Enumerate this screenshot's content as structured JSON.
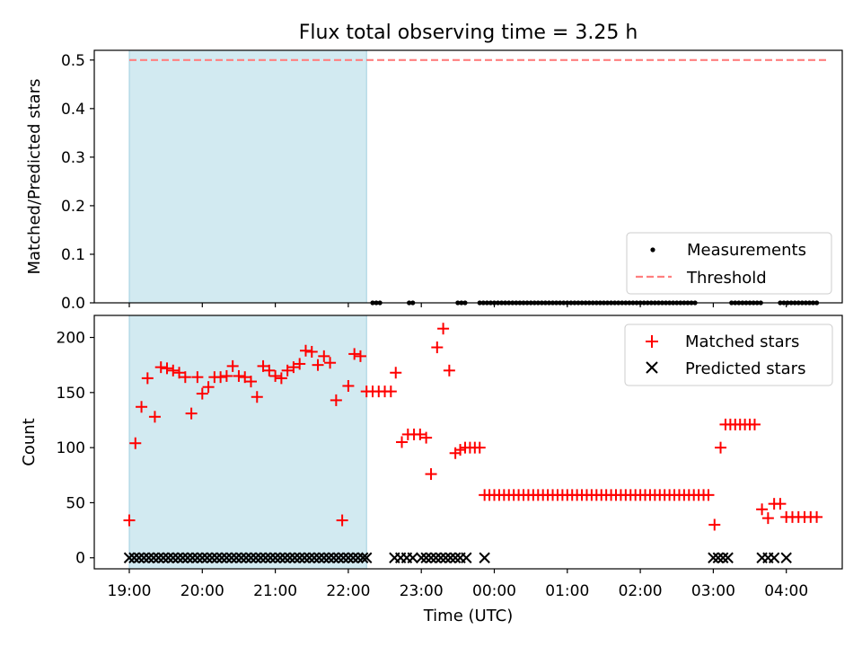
{
  "title": "Flux total observing time = 3.25 h",
  "xlabel": "Time (UTC)",
  "x_ticks": [
    "19:00",
    "20:00",
    "21:00",
    "22:00",
    "23:00",
    "00:00",
    "01:00",
    "02:00",
    "03:00",
    "04:00"
  ],
  "colors": {
    "matched": "#ff0000",
    "predicted": "#000000",
    "threshold": "#ff7f7f",
    "shade": "#add8e6"
  },
  "chart_data": [
    {
      "type": "scatter",
      "panel": "top",
      "ylabel": "Matched/Predicted stars",
      "ylim": [
        0,
        0.52
      ],
      "y_ticks": [
        "0.0",
        "0.1",
        "0.2",
        "0.3",
        "0.4",
        "0.5"
      ],
      "x_range_hours_since": "19:00",
      "shaded_interval": [
        "19:00",
        "22:15"
      ],
      "threshold": {
        "name": "Threshold",
        "value": 0.5,
        "from": "19:00",
        "to": "04:35"
      },
      "measurements": {
        "name": "Measurements",
        "x": [
          "22:20",
          "22:23",
          "22:26",
          "22:50",
          "22:53",
          "23:30",
          "23:33",
          "23:36",
          "23:48",
          "23:51",
          "23:54",
          "23:57",
          "00:00",
          "00:03",
          "00:06",
          "00:09",
          "00:12",
          "00:15",
          "00:18",
          "00:21",
          "00:24",
          "00:27",
          "00:30",
          "00:33",
          "00:36",
          "00:39",
          "00:42",
          "00:45",
          "00:48",
          "00:51",
          "00:54",
          "00:57",
          "01:00",
          "01:03",
          "01:06",
          "01:09",
          "01:12",
          "01:15",
          "01:18",
          "01:21",
          "01:24",
          "01:27",
          "01:30",
          "01:33",
          "01:36",
          "01:39",
          "01:42",
          "01:45",
          "01:48",
          "01:51",
          "01:54",
          "01:57",
          "02:00",
          "02:03",
          "02:06",
          "02:09",
          "02:12",
          "02:15",
          "02:18",
          "02:21",
          "02:24",
          "02:27",
          "02:30",
          "02:33",
          "02:36",
          "02:39",
          "02:42",
          "02:45",
          "03:15",
          "03:18",
          "03:21",
          "03:24",
          "03:27",
          "03:30",
          "03:33",
          "03:36",
          "03:39",
          "03:55",
          "03:58",
          "04:01",
          "04:04",
          "04:07",
          "04:10",
          "04:13",
          "04:16",
          "04:19",
          "04:22",
          "04:25"
        ],
        "y": 0
      },
      "legend": {
        "location": "lower right",
        "entries": [
          "Measurements",
          "Threshold"
        ]
      }
    },
    {
      "type": "scatter",
      "panel": "bottom",
      "ylabel": "Count",
      "ylim": [
        -10,
        220
      ],
      "y_ticks": [
        "0",
        "50",
        "100",
        "150",
        "200"
      ],
      "shaded_interval": [
        "19:00",
        "22:15"
      ],
      "series": [
        {
          "name": "Matched stars",
          "marker": "+",
          "points": [
            [
              "19:00",
              34
            ],
            [
              "19:05",
              104
            ],
            [
              "19:10",
              137
            ],
            [
              "19:15",
              163
            ],
            [
              "19:21",
              128
            ],
            [
              "19:26",
              173
            ],
            [
              "19:31",
              172
            ],
            [
              "19:36",
              170
            ],
            [
              "19:41",
              168
            ],
            [
              "19:46",
              164
            ],
            [
              "19:51",
              131
            ],
            [
              "19:56",
              164
            ],
            [
              "20:00",
              149
            ],
            [
              "20:05",
              155
            ],
            [
              "20:10",
              164
            ],
            [
              "20:15",
              164
            ],
            [
              "20:20",
              165
            ],
            [
              "20:25",
              174
            ],
            [
              "20:30",
              165
            ],
            [
              "20:35",
              164
            ],
            [
              "20:40",
              160
            ],
            [
              "20:45",
              146
            ],
            [
              "20:50",
              174
            ],
            [
              "20:55",
              170
            ],
            [
              "21:00",
              165
            ],
            [
              "21:05",
              163
            ],
            [
              "21:10",
              170
            ],
            [
              "21:15",
              173
            ],
            [
              "21:20",
              176
            ],
            [
              "21:25",
              188
            ],
            [
              "21:30",
              187
            ],
            [
              "21:35",
              175
            ],
            [
              "21:40",
              183
            ],
            [
              "21:45",
              177
            ],
            [
              "21:50",
              143
            ],
            [
              "21:55",
              34
            ],
            [
              "22:00",
              156
            ],
            [
              "22:05",
              185
            ],
            [
              "22:10",
              183
            ],
            [
              "22:15",
              151
            ],
            [
              "22:20",
              151
            ],
            [
              "22:25",
              151
            ],
            [
              "22:30",
              151
            ],
            [
              "22:35",
              151
            ],
            [
              "22:39",
              168
            ],
            [
              "22:44",
              105
            ],
            [
              "22:49",
              112
            ],
            [
              "22:54",
              112
            ],
            [
              "22:59",
              112
            ],
            [
              "23:04",
              109
            ],
            [
              "23:08",
              76
            ],
            [
              "23:13",
              191
            ],
            [
              "23:18",
              208
            ],
            [
              "23:23",
              170
            ],
            [
              "23:28",
              95
            ],
            [
              "23:32",
              98
            ],
            [
              "23:36",
              100
            ],
            [
              "23:40",
              100
            ],
            [
              "23:44",
              100
            ],
            [
              "23:48",
              100
            ],
            [
              "23:52",
              57
            ],
            [
              "23:56",
              57
            ],
            [
              "24:00",
              57
            ],
            [
              "24:04",
              57
            ],
            [
              "24:08",
              57
            ],
            [
              "24:12",
              57
            ],
            [
              "24:16",
              57
            ],
            [
              "24:20",
              57
            ],
            [
              "24:24",
              57
            ],
            [
              "24:28",
              57
            ],
            [
              "24:32",
              57
            ],
            [
              "24:36",
              57
            ],
            [
              "24:40",
              57
            ],
            [
              "24:44",
              57
            ],
            [
              "24:48",
              57
            ],
            [
              "24:52",
              57
            ],
            [
              "24:56",
              57
            ],
            [
              "25:00",
              57
            ],
            [
              "25:04",
              57
            ],
            [
              "25:08",
              57
            ],
            [
              "25:12",
              57
            ],
            [
              "25:16",
              57
            ],
            [
              "25:20",
              57
            ],
            [
              "25:24",
              57
            ],
            [
              "25:28",
              57
            ],
            [
              "25:32",
              57
            ],
            [
              "25:36",
              57
            ],
            [
              "25:40",
              57
            ],
            [
              "25:44",
              57
            ],
            [
              "25:48",
              57
            ],
            [
              "25:52",
              57
            ],
            [
              "25:56",
              57
            ],
            [
              "26:00",
              57
            ],
            [
              "26:04",
              57
            ],
            [
              "26:08",
              57
            ],
            [
              "26:12",
              57
            ],
            [
              "26:16",
              57
            ],
            [
              "26:20",
              57
            ],
            [
              "26:24",
              57
            ],
            [
              "26:28",
              57
            ],
            [
              "26:32",
              57
            ],
            [
              "26:36",
              57
            ],
            [
              "26:40",
              57
            ],
            [
              "26:44",
              57
            ],
            [
              "26:48",
              57
            ],
            [
              "26:52",
              57
            ],
            [
              "26:56",
              57
            ],
            [
              "27:01",
              30
            ],
            [
              "27:06",
              100
            ],
            [
              "27:10",
              121
            ],
            [
              "27:14",
              121
            ],
            [
              "27:18",
              121
            ],
            [
              "27:22",
              121
            ],
            [
              "27:26",
              121
            ],
            [
              "27:30",
              121
            ],
            [
              "27:34",
              121
            ],
            [
              "27:40",
              44
            ],
            [
              "27:45",
              36
            ],
            [
              "27:50",
              49
            ],
            [
              "27:55",
              49
            ],
            [
              "28:00",
              37
            ],
            [
              "28:05",
              37
            ],
            [
              "28:10",
              37
            ],
            [
              "28:15",
              37
            ],
            [
              "28:20",
              37
            ],
            [
              "28:25",
              37
            ]
          ]
        },
        {
          "name": "Predicted stars",
          "marker": "x",
          "x": [
            "19:00",
            "19:04",
            "19:08",
            "19:12",
            "19:16",
            "19:20",
            "19:24",
            "19:28",
            "19:32",
            "19:36",
            "19:40",
            "19:44",
            "19:48",
            "19:52",
            "19:56",
            "20:00",
            "20:04",
            "20:08",
            "20:12",
            "20:16",
            "20:20",
            "20:24",
            "20:28",
            "20:32",
            "20:36",
            "20:40",
            "20:44",
            "20:48",
            "20:52",
            "20:56",
            "21:00",
            "21:04",
            "21:08",
            "21:12",
            "21:16",
            "21:20",
            "21:24",
            "21:28",
            "21:32",
            "21:36",
            "21:40",
            "21:44",
            "21:48",
            "21:52",
            "21:56",
            "22:00",
            "22:04",
            "22:08",
            "22:12",
            "22:15",
            "22:38",
            "22:43",
            "22:48",
            "22:53",
            "23:00",
            "23:04",
            "23:08",
            "23:12",
            "23:16",
            "23:20",
            "23:24",
            "23:28",
            "23:32",
            "23:37",
            "23:52",
            "27:00",
            "27:04",
            "27:08",
            "27:12",
            "27:40",
            "27:45",
            "27:50",
            "28:00"
          ],
          "y": 0
        }
      ],
      "legend": {
        "location": "upper right",
        "entries": [
          "Matched stars",
          "Predicted stars"
        ]
      }
    }
  ]
}
